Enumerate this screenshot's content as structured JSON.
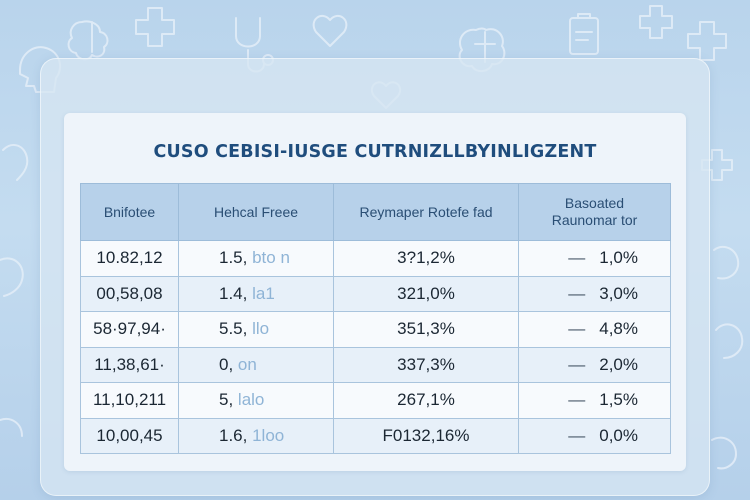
{
  "page": {
    "title": "CUSO CEBISI-IUSGE CUTRNIZLLBYINLIGZENT"
  },
  "table": {
    "headers": [
      "Bnifotee",
      "Hehcal Freee",
      "Reymaper Rotefe fad",
      "Basoated Raunomar tor"
    ],
    "header_lines": {
      "col4_line1": "Basoated",
      "col4_line2": "Raunomar tor"
    },
    "rows": [
      {
        "c1": "10.82,12",
        "c2_main": "1.5,",
        "c2_faint": "bto n",
        "c3": "3?1,2%",
        "c4_dash": "—",
        "c4_value": "1,0%"
      },
      {
        "c1": "00,58,08",
        "c2_main": "1.4,",
        "c2_faint": "la1",
        "c3": "321,0%",
        "c4_dash": "—",
        "c4_value": "3,0%"
      },
      {
        "c1": "58·97,94·",
        "c2_main": "5.5,",
        "c2_faint": "llo",
        "c3": "351,3%",
        "c4_dash": "—",
        "c4_value": "4,8%"
      },
      {
        "c1": "11,38,61·",
        "c2_main": "0,",
        "c2_faint": "on",
        "c3": "337,3%",
        "c4_dash": "—",
        "c4_value": "2,0%"
      },
      {
        "c1": "11,10,211",
        "c2_main": "5,",
        "c2_faint": "lalo",
        "c3": "267,1%",
        "c4_dash": "—",
        "c4_value": "1,5%"
      },
      {
        "c1": "10,00,45",
        "c2_main": "1.6,",
        "c2_faint": "1loo",
        "c3": "F0132,16%",
        "c4_dash": "—",
        "c4_value": "0,0%"
      }
    ]
  },
  "background_icons": [
    "brain-icon",
    "heart-icon",
    "medical-cross-icon",
    "stethoscope-icon",
    "head-outline-icon",
    "clipboard-icon"
  ],
  "colors": {
    "background": "#b9d4ec",
    "title": "#1f4d7d",
    "header_fill": "#b7d1ea",
    "row_light": "#f7fafd",
    "row_alt": "#e7f0f9"
  }
}
